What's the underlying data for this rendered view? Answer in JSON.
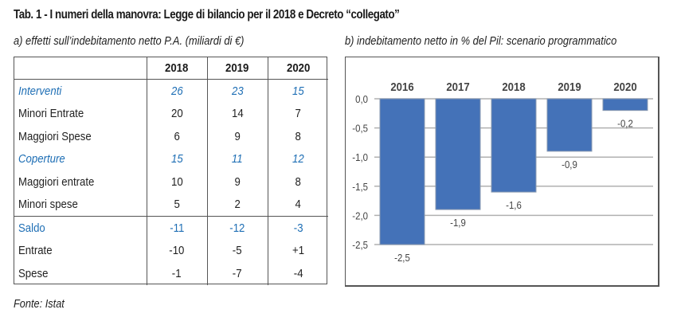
{
  "title": "Tab. 1 - I numeri della manovra: Legge di bilancio per il 2018 e Decreto “collegato”",
  "panel_a": {
    "subtitle": "a) effetti sull’indebitamento netto P.A. (miliardi di €)",
    "columns": [
      "",
      "2018",
      "2019",
      "2020"
    ],
    "rows": [
      {
        "label": "Interventi",
        "values": [
          "26",
          "23",
          "15"
        ],
        "style": "blue-italic"
      },
      {
        "label": "Minori Entrate",
        "values": [
          "20",
          "14",
          "7"
        ],
        "style": "normal"
      },
      {
        "label": "Maggiori Spese",
        "values": [
          "6",
          "9",
          "8"
        ],
        "style": "normal"
      },
      {
        "label": "Coperture",
        "values": [
          "15",
          "11",
          "12"
        ],
        "style": "blue-italic"
      },
      {
        "label": "Maggiori entrate",
        "values": [
          "10",
          "9",
          "8"
        ],
        "style": "normal"
      },
      {
        "label": "Minori spese",
        "values": [
          "5",
          "2",
          "4"
        ],
        "style": "normal"
      },
      {
        "label": "Saldo",
        "values": [
          "-11",
          "-12",
          "-3"
        ],
        "style": "blue"
      },
      {
        "label": "Entrate",
        "values": [
          "-10",
          "-5",
          "+1"
        ],
        "style": "normal"
      },
      {
        "label": "Spese",
        "values": [
          "-1",
          "-7",
          "-4"
        ],
        "style": "normal"
      }
    ],
    "colors": {
      "highlight": "#1f6fb5",
      "text": "#222222",
      "border": "#555555"
    }
  },
  "source": "Fonte: Istat",
  "chart_data": {
    "type": "bar",
    "title": "b) indebitamento netto in % del Pil: scenario programmatico",
    "categories": [
      "2016",
      "2017",
      "2018",
      "2019",
      "2020"
    ],
    "values": [
      -2.5,
      -1.9,
      -1.6,
      -0.9,
      -0.2
    ],
    "data_labels": [
      "-2,5",
      "-1,9",
      "-1,6",
      "-0,9",
      "-0,2"
    ],
    "xlabel": "",
    "ylabel": "",
    "ylim": [
      -2.5,
      0.0
    ],
    "yticks": [
      0.0,
      -0.5,
      -1.0,
      -1.5,
      -2.0,
      -2.5
    ],
    "ytick_labels": [
      "0,0",
      "-0,5",
      "-1,0",
      "-1,5",
      "-2,0",
      "-2,5"
    ],
    "category_axis_position": "top",
    "grid": true,
    "legend": "none",
    "colors": {
      "bar": "#4472b8",
      "bar_edge": "#8a9ab0",
      "grid": "#b0b0b0",
      "label": "#444444"
    }
  }
}
